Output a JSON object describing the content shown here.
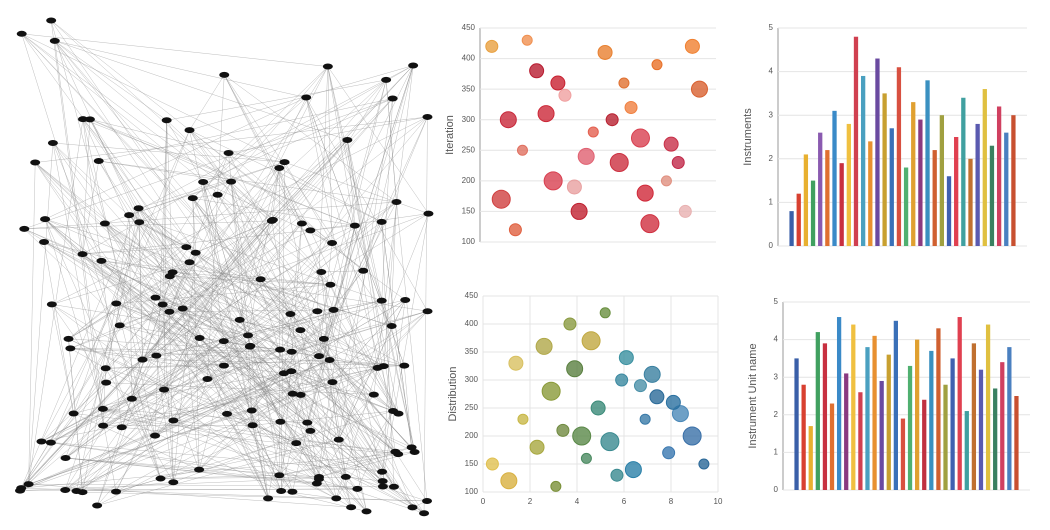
{
  "chart_data": [
    {
      "type": "scatter",
      "y_label": "Iteration",
      "x": [
        0.5,
        1.2,
        1.8,
        2.4,
        3.1,
        3.6,
        4.2,
        4.8,
        5.3,
        5.9,
        6.4,
        7.0,
        7.5,
        8.1,
        8.7,
        9.3,
        0.9,
        2.0,
        3.3,
        4.5,
        5.6,
        6.8,
        7.9,
        9.0,
        1.5,
        2.8,
        4.0,
        6.1,
        7.2,
        8.4
      ],
      "values": [
        420,
        300,
        250,
        380,
        200,
        340,
        150,
        280,
        410,
        230,
        320,
        180,
        390,
        260,
        150,
        350,
        170,
        430,
        360,
        240,
        300,
        270,
        200,
        420,
        120,
        310,
        190,
        360,
        130,
        230
      ],
      "sizes": [
        6,
        8,
        5,
        7,
        9,
        6,
        8,
        5,
        7,
        9,
        6,
        8,
        5,
        7,
        6,
        8,
        9,
        5,
        7,
        8,
        6,
        9,
        5,
        7,
        6,
        8,
        7,
        5,
        9,
        6
      ],
      "colors": [
        "#e8a040",
        "#c8283a",
        "#e07060",
        "#b81c30",
        "#d84050",
        "#f0a0a0",
        "#c02030",
        "#e46050",
        "#e88030",
        "#cc3040",
        "#f08040",
        "#d02838",
        "#e87028",
        "#c83048",
        "#e8b0b0",
        "#d86030",
        "#d04040",
        "#f09050",
        "#c82030",
        "#e06070",
        "#b82030",
        "#d84050",
        "#e09080",
        "#f08030",
        "#e06040",
        "#cc2838",
        "#e8a0a0",
        "#e07030",
        "#d03040",
        "#c02848"
      ],
      "xlim": [
        0,
        10
      ],
      "ylim": [
        100,
        450
      ],
      "yticks": [
        100,
        150,
        200,
        250,
        300,
        350,
        400,
        450
      ],
      "grid": true
    },
    {
      "type": "bar",
      "y_label": "Instruments",
      "categories": [
        null,
        null,
        null,
        null,
        null,
        null,
        null,
        null,
        null,
        null,
        null,
        null,
        null,
        null,
        null,
        null,
        null,
        null,
        null,
        null,
        null,
        null,
        null,
        null,
        null,
        null,
        null,
        null,
        null,
        null,
        null,
        null
      ],
      "values": [
        0.8,
        1.2,
        2.1,
        1.5,
        2.6,
        2.2,
        3.1,
        1.9,
        2.8,
        4.8,
        3.9,
        2.4,
        4.3,
        3.5,
        2.7,
        4.1,
        1.8,
        3.3,
        2.9,
        3.8,
        2.2,
        3.0,
        1.6,
        2.5,
        3.4,
        2.0,
        2.8,
        3.6,
        2.3,
        3.2,
        2.6,
        3.0
      ],
      "colors": [
        "#3a5fa8",
        "#d84030",
        "#e8b030",
        "#40a060",
        "#8a5ab0",
        "#e07030",
        "#3a8ac8",
        "#c83040",
        "#f0c040",
        "#d04050",
        "#4aa0c0",
        "#e89030",
        "#6a4aa0",
        "#c8a030",
        "#3a70b8",
        "#d85040",
        "#50b070",
        "#e0a030",
        "#8a3a80",
        "#3a90c0",
        "#d06030",
        "#a0a040",
        "#4060b0",
        "#e04050",
        "#40a0a0",
        "#c07030",
        "#5a5ab0",
        "#e0c040",
        "#3a8060",
        "#d04060",
        "#4a80c0",
        "#c85030"
      ],
      "ylim": [
        0,
        5
      ],
      "yticks": [
        0,
        1,
        2,
        3,
        4,
        5
      ],
      "grid": true
    },
    {
      "type": "scatter",
      "y_label": "Distribution",
      "x": [
        0.4,
        1.1,
        1.7,
        2.3,
        2.9,
        3.4,
        3.9,
        4.4,
        4.9,
        5.4,
        5.9,
        6.4,
        6.9,
        7.4,
        7.9,
        8.4,
        8.9,
        9.4,
        1.4,
        2.6,
        3.7,
        4.6,
        5.2,
        6.1,
        6.7,
        7.2,
        8.1,
        3.1,
        4.2,
        5.7
      ],
      "values": [
        150,
        120,
        230,
        180,
        280,
        210,
        320,
        160,
        250,
        190,
        300,
        140,
        230,
        270,
        170,
        240,
        200,
        150,
        330,
        360,
        400,
        370,
        420,
        340,
        290,
        310,
        260,
        110,
        200,
        130
      ],
      "sizes": [
        6,
        8,
        5,
        7,
        9,
        6,
        8,
        5,
        7,
        9,
        6,
        8,
        5,
        7,
        6,
        8,
        9,
        5,
        7,
        8,
        6,
        9,
        5,
        7,
        6,
        8,
        7,
        5,
        9,
        6
      ],
      "colors": [
        "#e0c050",
        "#d8b040",
        "#c8b848",
        "#a8a840",
        "#8a9a38",
        "#708a40",
        "#5a8040",
        "#4a8a60",
        "#3a8a78",
        "#3a8a90",
        "#3a88a0",
        "#2a80a8",
        "#3a7aa8",
        "#2a6a98",
        "#3a78b0",
        "#4a88b8",
        "#3a70a8",
        "#2a6898",
        "#d8c060",
        "#b0a848",
        "#8a9a40",
        "#c0a840",
        "#6a9040",
        "#3a90a0",
        "#4a90a8",
        "#3a80a0",
        "#2a70a0",
        "#7a9038",
        "#5a8848",
        "#3a8a90"
      ],
      "xlim": [
        0,
        10
      ],
      "ylim": [
        100,
        450
      ],
      "yticks": [
        100,
        150,
        200,
        250,
        300,
        350,
        400,
        450
      ],
      "xticks": [
        0,
        2,
        4,
        6,
        8,
        10
      ],
      "grid": true
    },
    {
      "type": "bar",
      "y_label": "Instrument Unit name",
      "categories": [
        null,
        null,
        null,
        null,
        null,
        null,
        null,
        null,
        null,
        null,
        null,
        null,
        null,
        null,
        null,
        null,
        null,
        null,
        null,
        null,
        null,
        null,
        null,
        null,
        null,
        null,
        null,
        null,
        null,
        null,
        null,
        null
      ],
      "values": [
        3.5,
        2.8,
        1.7,
        4.2,
        3.9,
        2.3,
        4.6,
        3.1,
        4.4,
        2.6,
        3.8,
        4.1,
        2.9,
        3.6,
        4.5,
        1.9,
        3.3,
        4.0,
        2.4,
        3.7,
        4.3,
        2.8,
        3.5,
        4.6,
        2.1,
        3.9,
        3.2,
        4.4,
        2.7,
        3.4,
        3.8,
        2.5
      ],
      "colors": [
        "#3a5fa8",
        "#d84030",
        "#e8b030",
        "#40a060",
        "#c83040",
        "#e07030",
        "#3a8ac8",
        "#8a3a80",
        "#f0c040",
        "#d04050",
        "#4aa0c0",
        "#e89030",
        "#6a4aa0",
        "#c8a030",
        "#3a70b8",
        "#d85040",
        "#50b070",
        "#e0a030",
        "#c03040",
        "#3a90c0",
        "#d06030",
        "#a0a040",
        "#4060b0",
        "#e04050",
        "#40a0a0",
        "#c07030",
        "#5a5ab0",
        "#e0c040",
        "#3a8060",
        "#d04060",
        "#4a80c0",
        "#c85030"
      ],
      "ylim": [
        0,
        5
      ],
      "yticks": [
        0,
        1,
        2,
        3,
        4,
        5
      ],
      "grid": true
    }
  ]
}
